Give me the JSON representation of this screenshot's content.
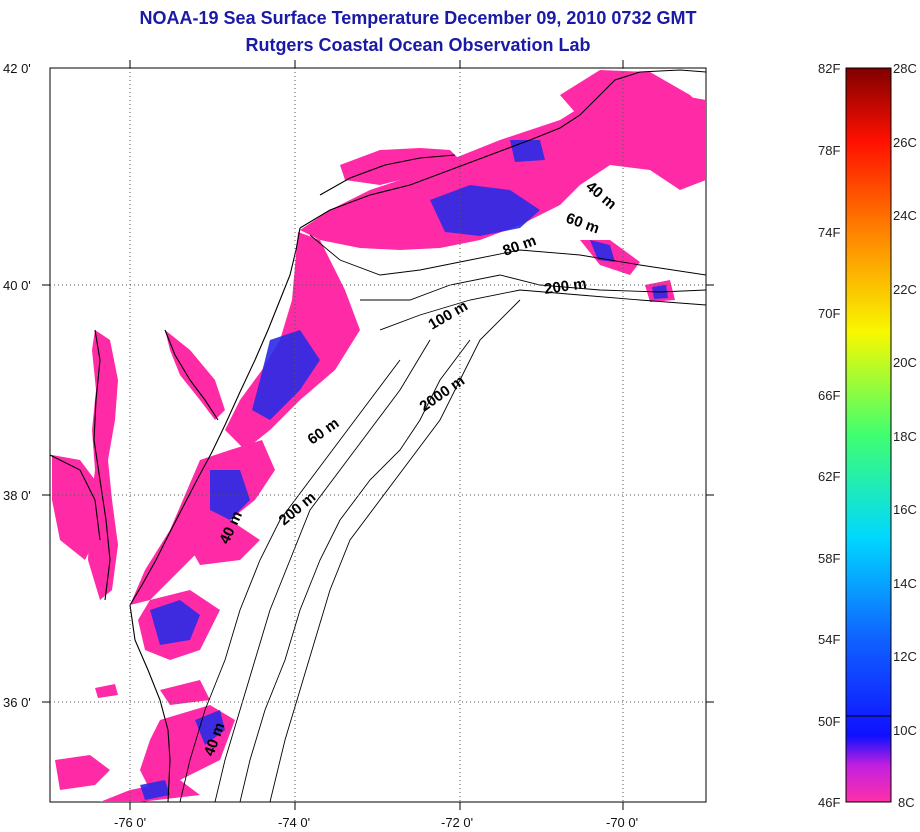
{
  "title": {
    "line1": "NOAA-19 Sea Surface Temperature December 09, 2010 0732 GMT",
    "line2": "Rutgers Coastal Ocean Observation Lab"
  },
  "map": {
    "lat_labels": [
      "42 0'",
      "40 0'",
      "38 0'",
      "36 0'"
    ],
    "lon_labels": [
      "-76 0'",
      "-74 0'",
      "-72 0'",
      "-70 0'"
    ],
    "depth_labels": [
      "40 m",
      "60 m",
      "80 m",
      "200 m",
      "100 m",
      "2000 m",
      "60 m",
      "200 m",
      "40 m",
      "40 m"
    ],
    "colors": {
      "land": "#ffffff",
      "sst_cold": "#ff2aa6",
      "sst_cool": "#2525e0",
      "coast": "#000000"
    }
  },
  "colorbar": {
    "fahrenheit": [
      "82F",
      "78F",
      "74F",
      "70F",
      "66F",
      "62F",
      "58F",
      "54F",
      "50F",
      "46F"
    ],
    "celsius": [
      "28C",
      "26C",
      "24C",
      "22C",
      "20C",
      "18C",
      "16C",
      "14C",
      "12C",
      "10C",
      "8C"
    ]
  }
}
